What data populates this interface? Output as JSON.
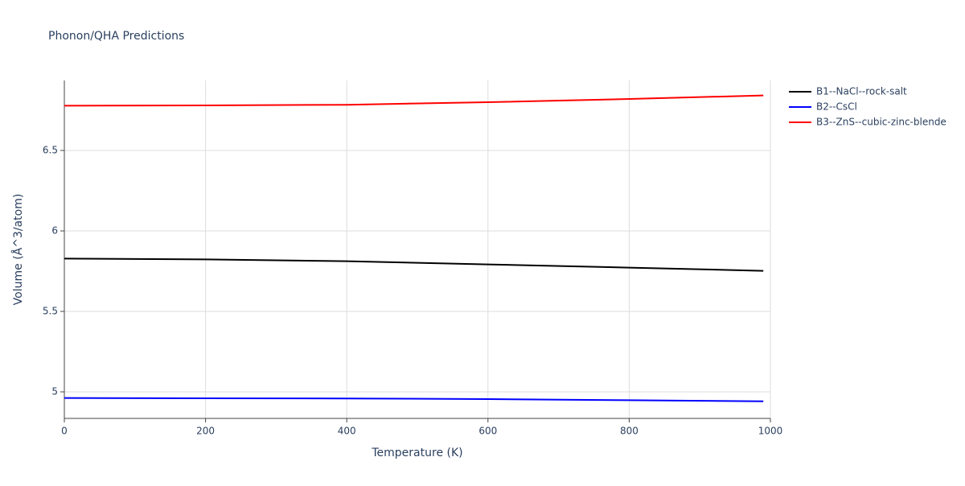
{
  "chart_data": {
    "type": "line",
    "title": "Phonon/QHA Predictions",
    "x_label": "Temperature (K)",
    "y_label": "Volume (Å^3/atom)",
    "x": [
      0,
      200,
      400,
      600,
      800,
      990
    ],
    "series": [
      {
        "name": "B1--NaCl--rock-salt",
        "color": "#000000",
        "values": [
          5.828,
          5.823,
          5.812,
          5.792,
          5.772,
          5.752
        ]
      },
      {
        "name": "B2--CsCl",
        "color": "#0000ff",
        "values": [
          4.962,
          4.96,
          4.959,
          4.955,
          4.948,
          4.941
        ]
      },
      {
        "name": "B3--ZnS--cubic-zinc-blende",
        "color": "#ff0000",
        "values": [
          6.778,
          6.78,
          6.784,
          6.8,
          6.82,
          6.842
        ]
      }
    ],
    "xlim": [
      0,
      1000
    ],
    "xticks": [
      0,
      200,
      400,
      600,
      800,
      1000
    ],
    "ylim": [
      4.835,
      6.935
    ],
    "yticks": [
      5,
      5.5,
      6,
      6.5
    ],
    "grid": true,
    "legend": "right"
  }
}
